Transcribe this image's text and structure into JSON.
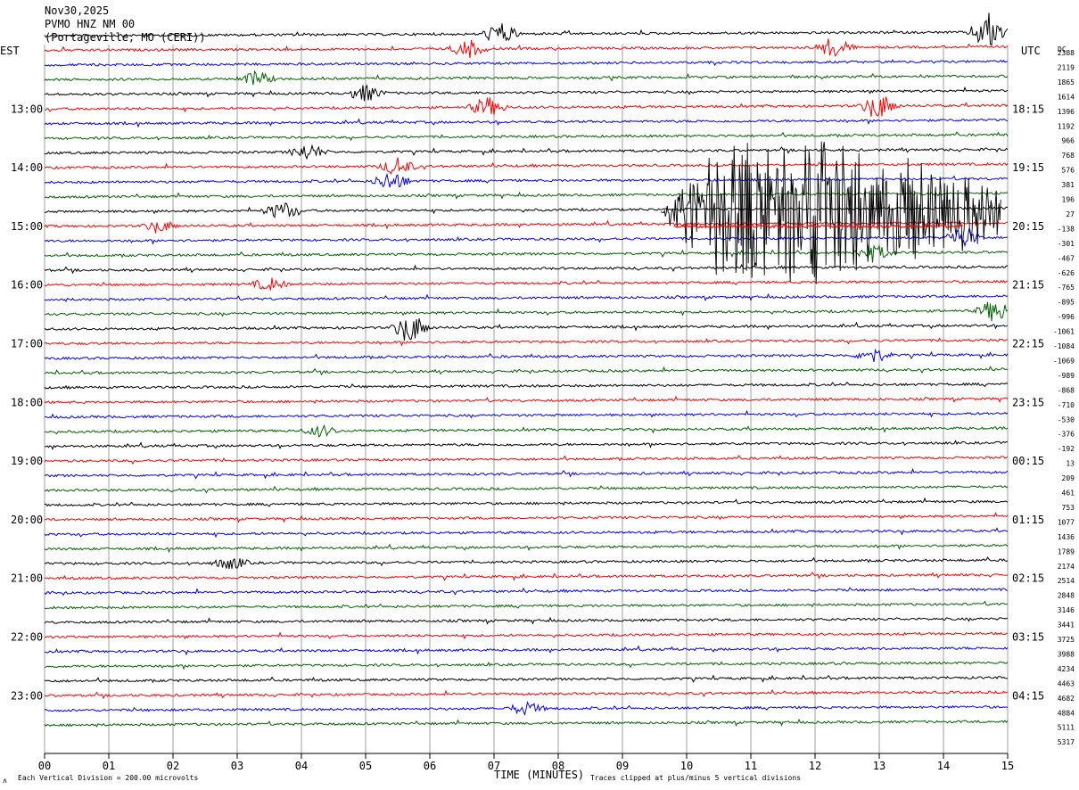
{
  "header": {
    "date": "Nov30,2025",
    "station": "PVMO HNZ NM 00",
    "location": "(Portageville, MO (CERI))"
  },
  "left_axis_label": "EST",
  "right_axis_label": "UTC",
  "dc_label": "DC",
  "footer": {
    "corner_mark": "ʌ",
    "scale_note": "Each Vertical Division =  200.00 microvolts",
    "x_title": "TIME (MINUTES)",
    "clip_note": "Traces clipped at plus/minus 5 vertical divisions"
  },
  "chart_data": {
    "type": "line",
    "title": "PVMO HNZ NM 00",
    "xlabel": "TIME (MINUTES)",
    "xlim": [
      0,
      15
    ],
    "x_ticks": [
      "00",
      "01",
      "02",
      "03",
      "04",
      "05",
      "06",
      "07",
      "08",
      "09",
      "10",
      "11",
      "12",
      "13",
      "14",
      "15"
    ],
    "trace_count": 48,
    "minutes_per_trace": 15,
    "trace_colors": [
      "#000000",
      "#ff0000",
      "#0000ff",
      "#006400"
    ],
    "left_time_labels": [
      "13:00",
      "14:00",
      "15:00",
      "16:00",
      "17:00",
      "18:00",
      "19:00",
      "20:00",
      "21:00",
      "22:00",
      "23:00"
    ],
    "right_time_labels": [
      "18:15",
      "19:15",
      "20:15",
      "21:15",
      "22:15",
      "23:15",
      "00:15",
      "01:15",
      "02:15",
      "03:15",
      "04:15"
    ],
    "dc_offsets": [
      "2388",
      "2119",
      "1865",
      "1614",
      "1396",
      "1192",
      "966",
      "768",
      "576",
      "381",
      "196",
      "27",
      "-138",
      "-301",
      "-467",
      "-626",
      "-765",
      "-895",
      "-996",
      "-1061",
      "-1084",
      "-1069",
      "-989",
      "-868",
      "-710",
      "-530",
      "-376",
      "-192",
      "13",
      "209",
      "461",
      "753",
      "1077",
      "1436",
      "1789",
      "2174",
      "2514",
      "2848",
      "3146",
      "3441",
      "3725",
      "3988",
      "4234",
      "4463",
      "4682",
      "4884",
      "5111",
      "5317"
    ],
    "events": [
      {
        "trace": 0,
        "minute": 7.1,
        "amp": 1.2
      },
      {
        "trace": 0,
        "minute": 14.7,
        "amp": 2.2
      },
      {
        "trace": 1,
        "minute": 6.6,
        "amp": 1.0
      },
      {
        "trace": 1,
        "minute": 12.3,
        "amp": 1.2
      },
      {
        "trace": 3,
        "minute": 3.3,
        "amp": 0.8
      },
      {
        "trace": 4,
        "minute": 5.0,
        "amp": 0.9
      },
      {
        "trace": 5,
        "minute": 6.9,
        "amp": 1.1
      },
      {
        "trace": 5,
        "minute": 13.0,
        "amp": 1.4
      },
      {
        "trace": 8,
        "minute": 4.1,
        "amp": 0.9
      },
      {
        "trace": 9,
        "minute": 5.5,
        "amp": 1.0
      },
      {
        "trace": 10,
        "minute": 5.4,
        "amp": 1.1
      },
      {
        "trace": 12,
        "minute": 3.7,
        "amp": 1.0
      },
      {
        "trace": 13,
        "minute": 1.8,
        "amp": 0.6
      },
      {
        "trace": 14,
        "minute": 14.3,
        "amp": 1.2
      },
      {
        "trace": 15,
        "minute": 12.9,
        "amp": 1.0
      },
      {
        "trace": 17,
        "minute": 3.5,
        "amp": 0.7
      },
      {
        "trace": 19,
        "minute": 14.8,
        "amp": 1.3
      },
      {
        "trace": 20,
        "minute": 5.7,
        "amp": 1.6
      },
      {
        "trace": 22,
        "minute": 12.9,
        "amp": 0.8
      },
      {
        "trace": 27,
        "minute": 4.3,
        "amp": 0.6
      },
      {
        "trace": 36,
        "minute": 2.9,
        "amp": 0.7
      },
      {
        "trace": 46,
        "minute": 7.5,
        "amp": 0.7
      }
    ],
    "major_event": {
      "trace": 12,
      "start_minute": 9.6,
      "peak_minute": 11.0,
      "end_minute": 14.9,
      "note": "Traces clipped at plus/minus 5 vertical divisions"
    }
  }
}
